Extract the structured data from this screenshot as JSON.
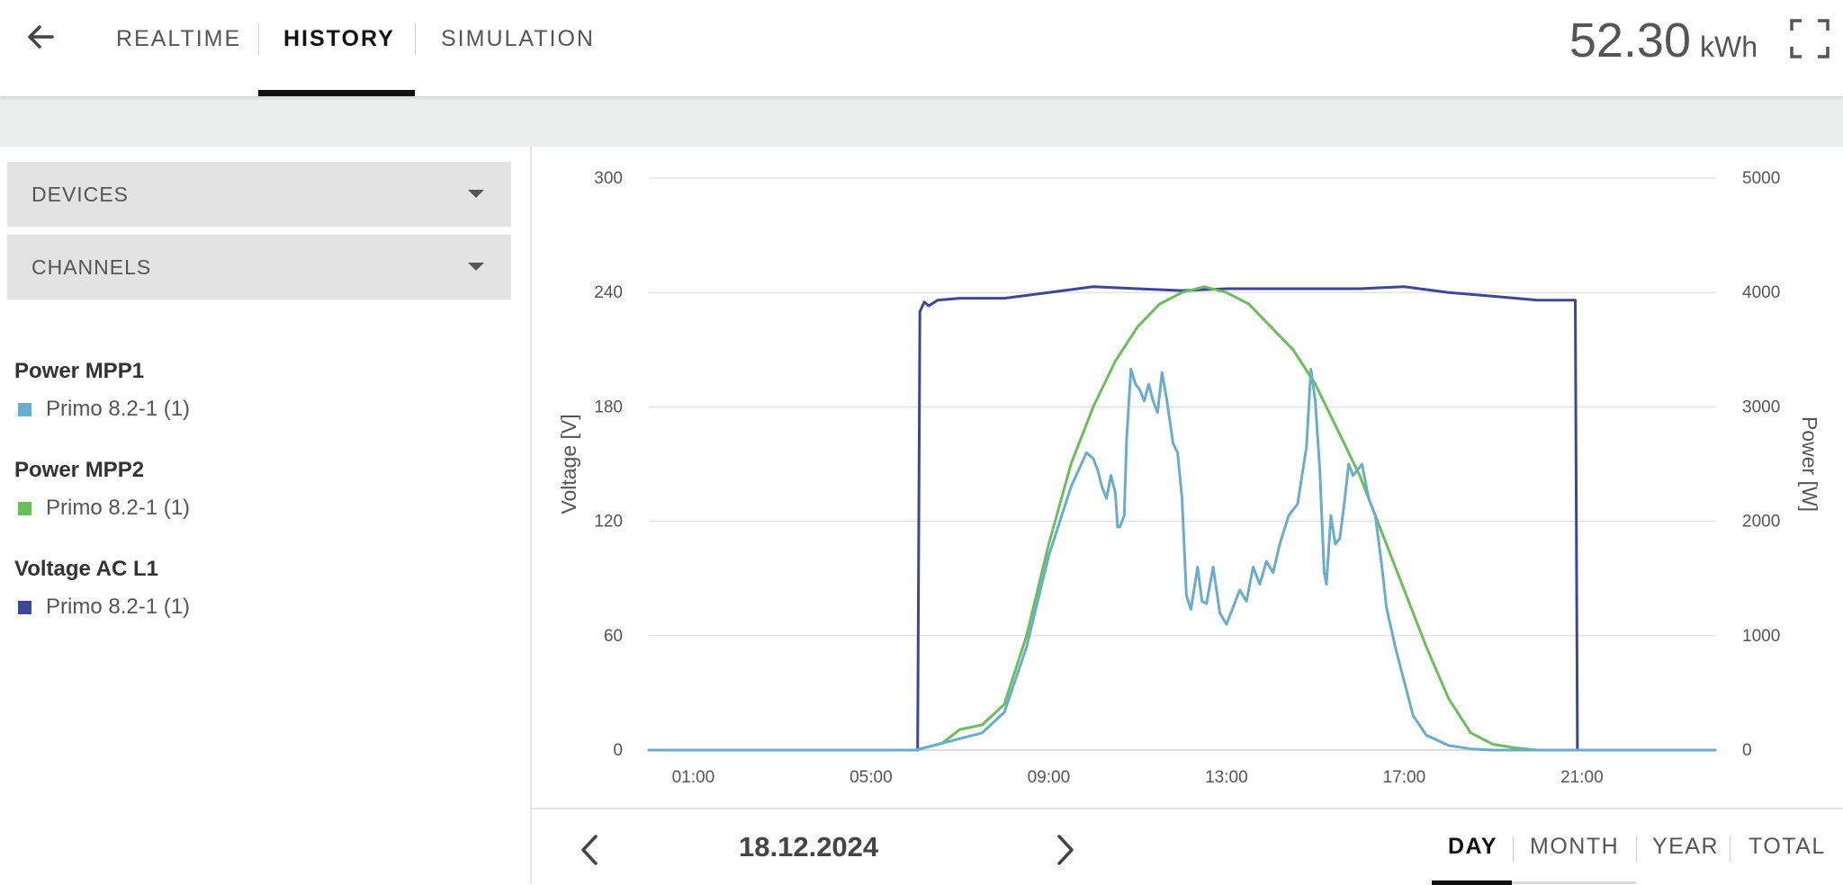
{
  "header": {
    "tabs": [
      {
        "label": "REALTIME",
        "active": false
      },
      {
        "label": "HISTORY",
        "active": true
      },
      {
        "label": "SIMULATION",
        "active": false
      }
    ],
    "energy_value": "52.30",
    "energy_unit": "kWh"
  },
  "sidebar": {
    "dropdowns": [
      {
        "label": "DEVICES"
      },
      {
        "label": "CHANNELS"
      }
    ],
    "legend": [
      {
        "title": "Power MPP1",
        "device": "Primo 8.2-1 (1)",
        "color": "#6aaccb"
      },
      {
        "title": "Power MPP2",
        "device": "Primo 8.2-1 (1)",
        "color": "#6abf5a"
      },
      {
        "title": "Voltage AC L1",
        "device": "Primo 8.2-1 (1)",
        "color": "#3d4795"
      }
    ]
  },
  "date_nav": {
    "date": "18.12.2024",
    "periods": [
      {
        "label": "DAY",
        "active": true
      },
      {
        "label": "MONTH",
        "active": false
      },
      {
        "label": "YEAR",
        "active": false
      },
      {
        "label": "TOTAL",
        "active": false
      }
    ]
  },
  "chart_data": {
    "type": "line",
    "ylabel_left": "Voltage [V]",
    "ylabel_right": "Power [W]",
    "x_ticks": [
      "01:00",
      "05:00",
      "09:00",
      "13:00",
      "17:00",
      "21:00"
    ],
    "x_range_hours": [
      0,
      24
    ],
    "y_left_ticks": [
      0,
      60,
      120,
      180,
      240,
      300
    ],
    "y_left_range": [
      0,
      300
    ],
    "y_right_ticks": [
      0,
      1000,
      2000,
      3000,
      4000,
      5000
    ],
    "y_right_range": [
      0,
      5000
    ],
    "grid": true,
    "series": [
      {
        "name": "Voltage AC L1",
        "axis": "left",
        "color": "#3d4795",
        "x": [
          0,
          6.05,
          6.1,
          6.2,
          6.3,
          6.5,
          7.0,
          8.0,
          9.0,
          10.0,
          11.0,
          12.0,
          13.0,
          14.0,
          15.0,
          16.0,
          17.0,
          18.0,
          19.0,
          20.0,
          20.7,
          20.85,
          20.9,
          24
        ],
        "y": [
          0,
          0,
          230,
          235,
          233,
          236,
          237,
          237,
          240,
          243,
          242,
          241,
          242,
          242,
          242,
          242,
          243,
          240,
          238,
          236,
          236,
          236,
          0,
          0
        ]
      },
      {
        "name": "Power MPP2",
        "axis": "right",
        "color": "#6abf5a",
        "x": [
          0,
          6.0,
          6.6,
          7.0,
          7.5,
          8.0,
          8.5,
          9.0,
          9.5,
          10.0,
          10.5,
          11.0,
          11.5,
          12.0,
          12.5,
          13.0,
          13.5,
          14.0,
          14.5,
          15.0,
          15.5,
          16.0,
          16.5,
          17.0,
          17.5,
          18.0,
          18.5,
          19.0,
          19.5,
          20.0,
          20.5,
          20.8,
          24
        ],
        "y": [
          0,
          0,
          60,
          180,
          220,
          400,
          1000,
          1800,
          2500,
          3000,
          3400,
          3700,
          3900,
          4000,
          4050,
          4000,
          3900,
          3700,
          3500,
          3200,
          2800,
          2400,
          1900,
          1400,
          900,
          450,
          150,
          50,
          20,
          0,
          0,
          0,
          0
        ]
      },
      {
        "name": "Power MPP1",
        "axis": "right",
        "color": "#6aaccb",
        "x": [
          0,
          6.0,
          6.6,
          7.0,
          7.5,
          8.0,
          8.5,
          9.0,
          9.5,
          9.85,
          10.0,
          10.1,
          10.2,
          10.3,
          10.4,
          10.5,
          10.55,
          10.6,
          10.7,
          10.75,
          10.85,
          10.95,
          11.05,
          11.15,
          11.25,
          11.35,
          11.45,
          11.55,
          11.65,
          11.8,
          11.9,
          12.0,
          12.1,
          12.2,
          12.35,
          12.45,
          12.55,
          12.7,
          12.85,
          13.0,
          13.15,
          13.3,
          13.45,
          13.6,
          13.75,
          13.9,
          14.05,
          14.2,
          14.4,
          14.6,
          14.8,
          14.9,
          15.0,
          15.1,
          15.2,
          15.25,
          15.35,
          15.45,
          15.55,
          15.65,
          15.75,
          15.85,
          15.95,
          16.05,
          16.2,
          16.35,
          16.5,
          16.6,
          16.8,
          17.0,
          17.2,
          17.5,
          18.0,
          18.5,
          19.0,
          19.5,
          20.0,
          20.5,
          20.8,
          24
        ],
        "y": [
          0,
          0,
          60,
          100,
          150,
          330,
          900,
          1700,
          2300,
          2600,
          2550,
          2450,
          2300,
          2200,
          2400,
          2250,
          1950,
          1950,
          2050,
          2700,
          3330,
          3200,
          3150,
          3050,
          3200,
          3050,
          2950,
          3300,
          3080,
          2680,
          2600,
          2200,
          1350,
          1230,
          1600,
          1300,
          1280,
          1600,
          1200,
          1100,
          1250,
          1400,
          1300,
          1600,
          1450,
          1650,
          1550,
          1800,
          2050,
          2150,
          2650,
          3330,
          3050,
          2450,
          1550,
          1450,
          2050,
          1800,
          1850,
          2150,
          2500,
          2400,
          2450,
          2500,
          2200,
          2050,
          1600,
          1250,
          900,
          600,
          300,
          130,
          40,
          10,
          0,
          0,
          0,
          0,
          0,
          0
        ]
      }
    ]
  }
}
